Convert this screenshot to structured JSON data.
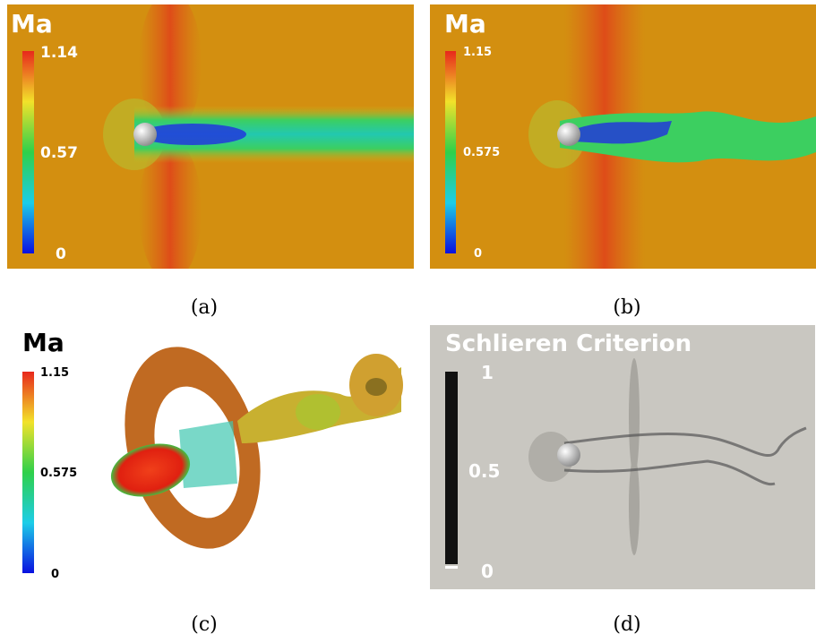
{
  "panels": [
    {
      "title": "Ma",
      "colorbar": {
        "max": "1.14",
        "mid": "0.57",
        "min": "0"
      },
      "caption": "(a)"
    },
    {
      "title": "Ma",
      "colorbar": {
        "max": "1.15",
        "mid": "0.575",
        "min": "0"
      },
      "caption": "(b)"
    },
    {
      "title": "Ma",
      "colorbar": {
        "max": "1.15",
        "mid": "0.575",
        "min": "0"
      },
      "caption": "(c)"
    },
    {
      "title": "Schlieren Criterion",
      "colorbar": {
        "max": "1",
        "mid": "0.5",
        "min": "0"
      },
      "caption": "(d)"
    }
  ]
}
